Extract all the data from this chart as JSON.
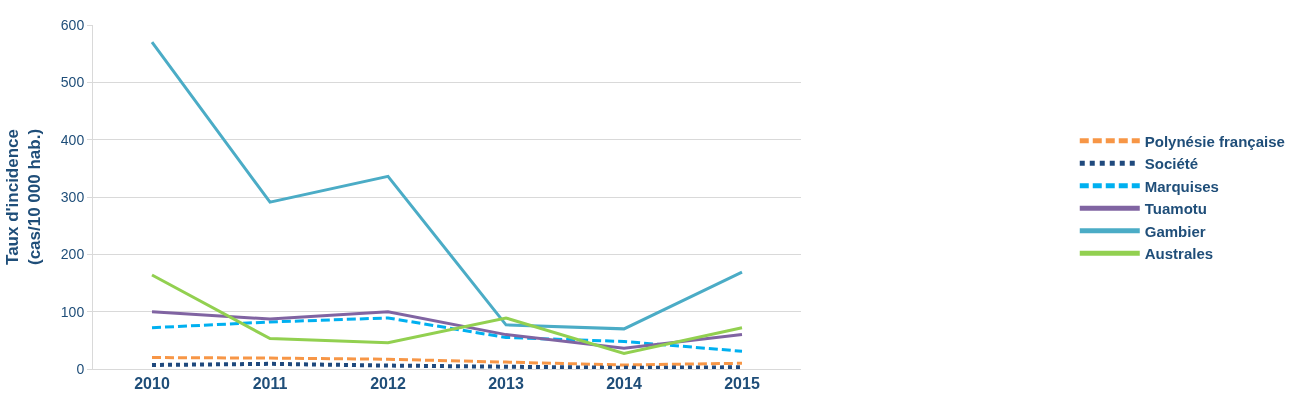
{
  "chart_data": {
    "type": "line",
    "ylabel": "Taux d'incidence\n(cas/10 000 hab.)",
    "categories": [
      "2010",
      "2011",
      "2012",
      "2013",
      "2014",
      "2015"
    ],
    "series": [
      {
        "name": "Polynésie française",
        "color": "#f79646",
        "line_style": "dashed",
        "values": [
          20,
          19,
          17,
          12,
          7,
          10
        ]
      },
      {
        "name": "Société",
        "color": "#1f497d",
        "line_style": "dotted",
        "values": [
          7,
          9,
          6,
          4,
          2,
          3
        ]
      },
      {
        "name": "Marquises",
        "color": "#00b0f0",
        "line_style": "dashed",
        "values": [
          72,
          82,
          89,
          55,
          48,
          31
        ]
      },
      {
        "name": "Tuamotu",
        "color": "#8064a2",
        "line_style": "solid",
        "values": [
          100,
          87,
          100,
          60,
          36,
          60
        ]
      },
      {
        "name": "Gambier",
        "color": "#4bacc6",
        "line_style": "solid",
        "values": [
          570,
          291,
          336,
          77,
          70,
          169
        ]
      },
      {
        "name": "Australes",
        "color": "#92d050",
        "line_style": "solid",
        "values": [
          164,
          53,
          46,
          89,
          27,
          72
        ]
      }
    ],
    "ylim": [
      0,
      600
    ],
    "yticks": [
      0,
      100,
      200,
      300,
      400,
      500,
      600
    ],
    "grid": "y",
    "legend": "right",
    "marker": "none"
  }
}
